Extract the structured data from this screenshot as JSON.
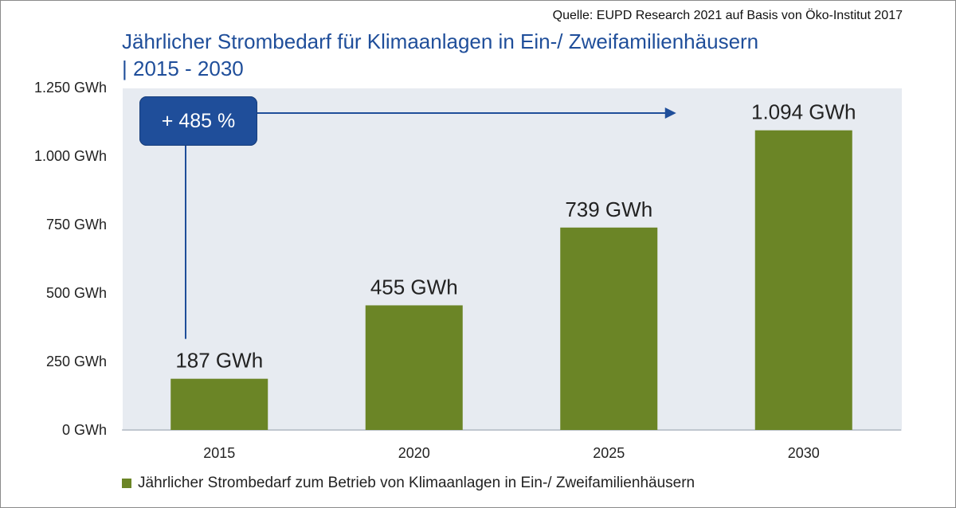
{
  "source": "Quelle: EUPD Research 2021 auf Basis von Öko-Institut 2017",
  "title_lines": [
    "Jährlicher Strombedarf für Klimaanlagen in Ein-/ Zweifamilienhäusern",
    "| 2015 - 2030"
  ],
  "callout": "+ 485 %",
  "colors": {
    "bar": "#6b8526",
    "title": "#1f4e9a",
    "plot_background": "#e7ebf1",
    "callout": "#1f4e9a"
  },
  "chart_data": {
    "type": "bar",
    "categories": [
      "2015",
      "2020",
      "2025",
      "2030"
    ],
    "series": [
      {
        "name": "Jährlicher Strombedarf zum Betrieb von Klimaanlagen in Ein-/ Zweifamilienhäusern",
        "values": [
          187,
          455,
          739,
          1094
        ],
        "data_labels": [
          "187 GWh",
          "455 GWh",
          "739 GWh",
          "1.094 GWh"
        ]
      }
    ],
    "ylim": [
      0,
      1250
    ],
    "yticks": [
      0,
      250,
      500,
      750,
      1000,
      1250
    ],
    "ytick_labels": [
      "0 GWh",
      "250 GWh",
      "500 GWh",
      "750 GWh",
      "1.000 GWh",
      "1.250 GWh"
    ],
    "grid": false,
    "legend_position": "bottom-left"
  }
}
